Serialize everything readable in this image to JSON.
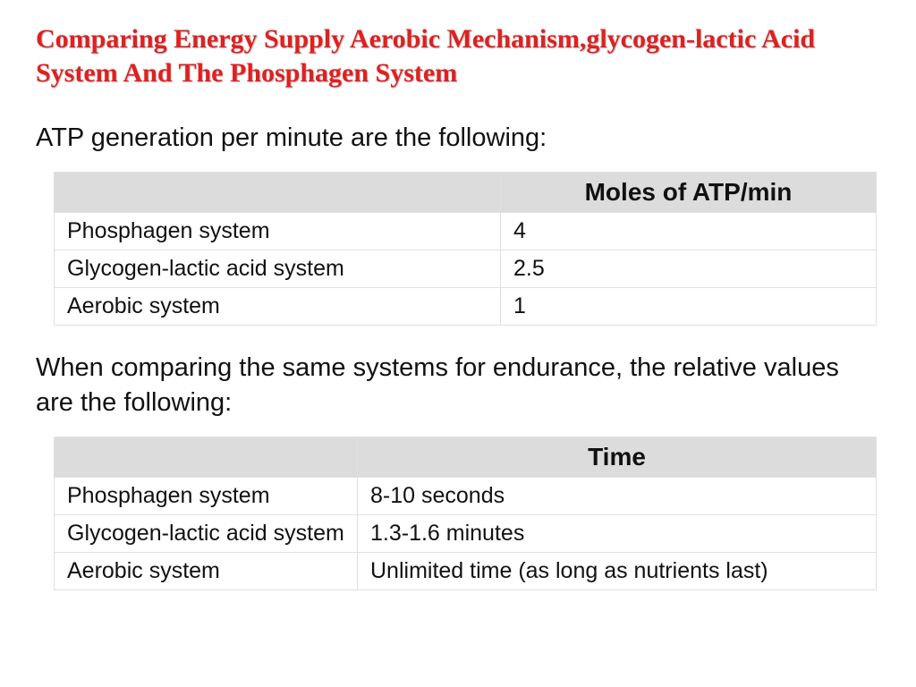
{
  "title": "Comparing Energy Supply  Aerobic Mechanism,glycogen-lactic Acid System And The Phosphagen System",
  "intro1": "ATP generation per minute are the following:",
  "intro2": "When comparing the same systems for endurance, the relative values are the following:",
  "table1": {
    "header": "Moles of ATP/min",
    "columns_width": [
      470,
      450
    ],
    "rows": [
      {
        "system": "Phosphagen system",
        "value": "4"
      },
      {
        "system": "Glycogen-lactic acid system",
        "value": "2.5"
      },
      {
        "system": "Aerobic system",
        "value": "1"
      }
    ]
  },
  "table2": {
    "header": "Time",
    "columns_width": [
      310,
      610
    ],
    "rows": [
      {
        "system": "Phosphagen system",
        "value": "8-10 seconds"
      },
      {
        "system": "Glycogen-lactic acid system",
        "value": "1.3-1.6 minutes"
      },
      {
        "system": "Aerobic system",
        "value": "Unlimited time (as long as nutrients last)"
      }
    ]
  },
  "colors": {
    "title": "#e02020",
    "header_bg": "#dcdcdc",
    "border": "#e0e0e0",
    "text": "#111111",
    "background": "#ffffff"
  },
  "fonts": {
    "title_family": "Times New Roman",
    "title_size_pt": 22,
    "body_family": "Arial",
    "body_size_pt": 21,
    "table_size_pt": 18
  }
}
